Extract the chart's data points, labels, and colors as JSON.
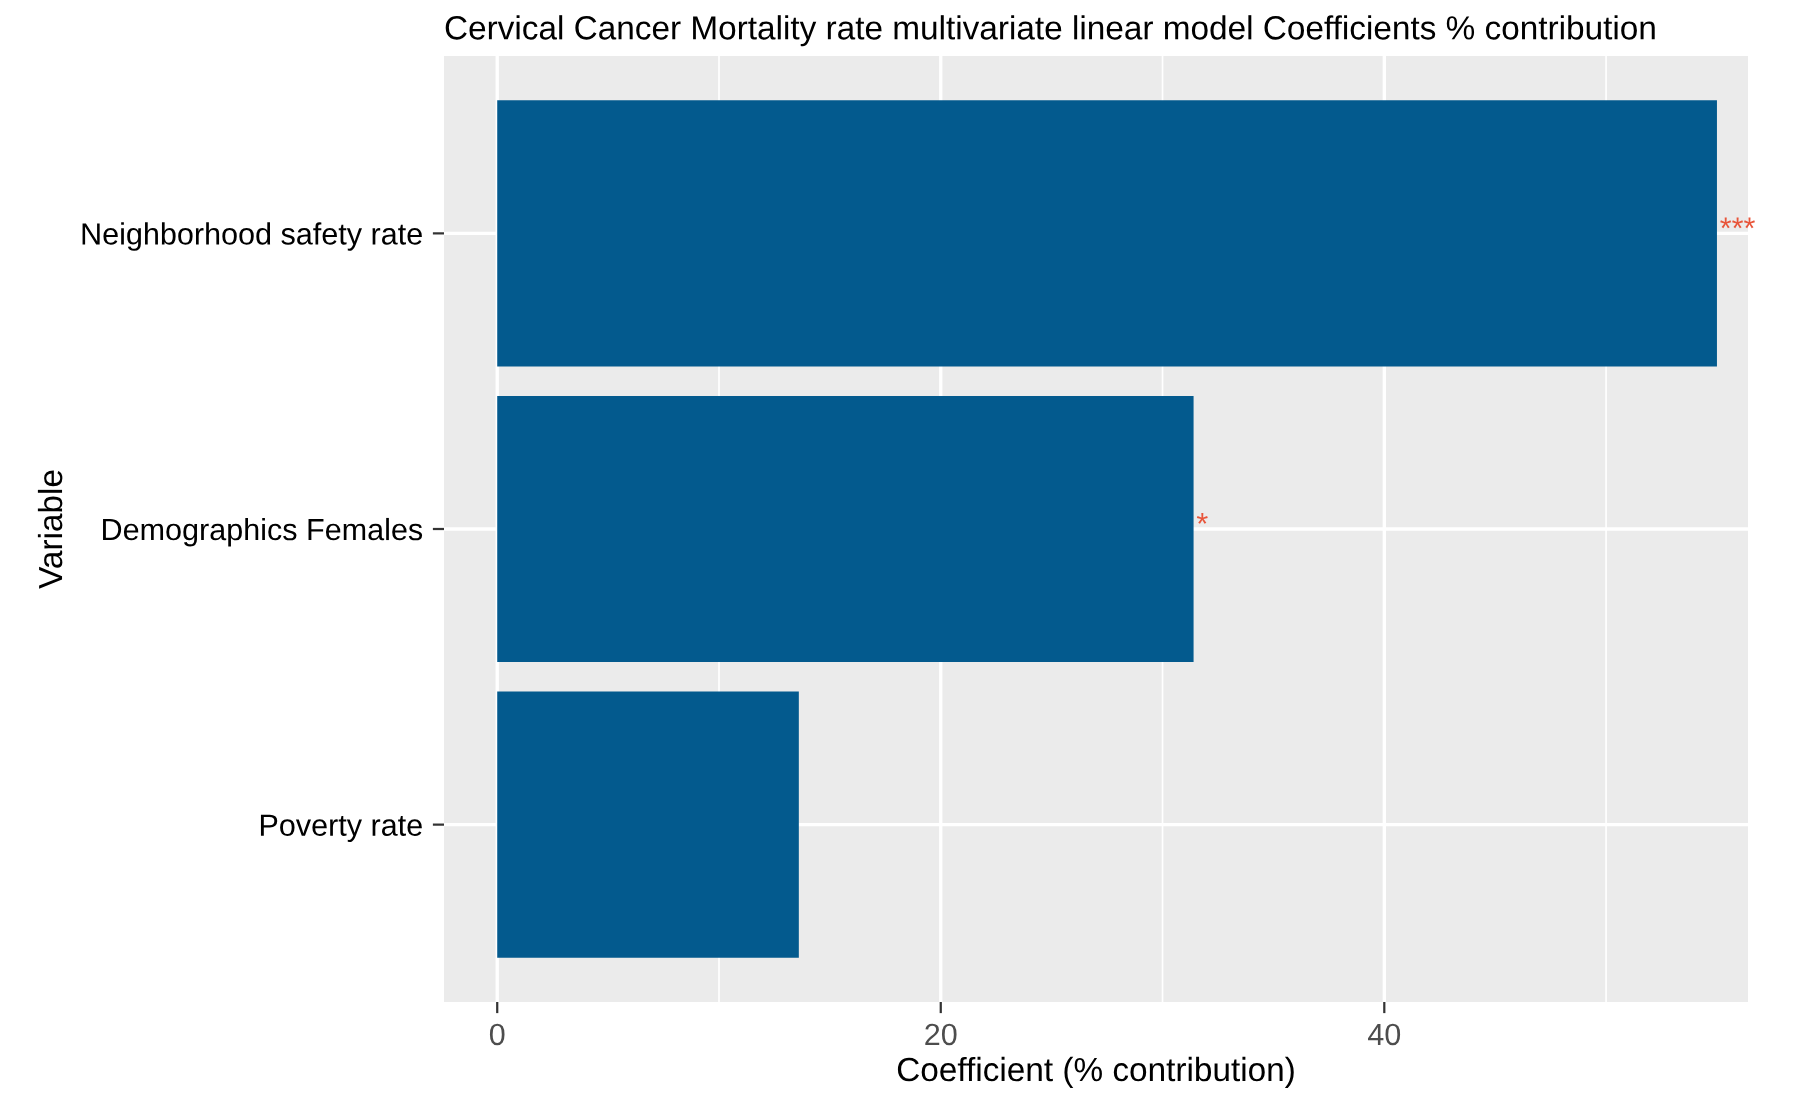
{
  "chart_data": {
    "type": "bar",
    "orientation": "horizontal",
    "title": "Cervical Cancer Mortality rate multivariate linear model Coefficients % contribution",
    "xlabel": "Coefficient (% contribution)",
    "ylabel": "Variable",
    "categories": [
      "Neighborhood safety rate",
      "Demographics Females",
      "Poverty rate"
    ],
    "values": [
      55.0,
      31.4,
      13.6
    ],
    "color": "#035a8e",
    "xlim": [
      -2.4,
      56.4
    ],
    "xticks": [
      0,
      20,
      40
    ],
    "grid": true,
    "annotations": [
      {
        "text": "***",
        "x": 55.0,
        "y": "Neighborhood safety rate"
      },
      {
        "text": "*",
        "x": 31.4,
        "y": "Demographics Females"
      }
    ]
  }
}
